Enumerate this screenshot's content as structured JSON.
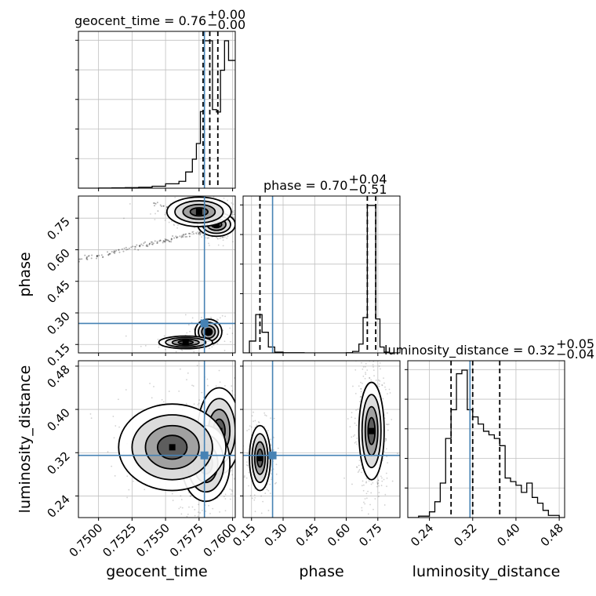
{
  "chart_data": {
    "type": "corner",
    "parameters": [
      "geocent_time",
      "phase",
      "luminosity_distance"
    ],
    "truths": {
      "geocent_time": 0.7579,
      "phase": 0.25,
      "luminosity_distance": 0.315
    },
    "colors": {
      "truth": "#4682b4",
      "hist": "#000000",
      "grid": "#c0c0c0",
      "samples": "#000000"
    },
    "grid": true,
    "titles": [
      {
        "param": "geocent_time",
        "prefix": "geocent_time = 0.76",
        "plus": "+0.00",
        "minus": "−0.00"
      },
      {
        "param": "phase",
        "prefix": "phase = 0.70",
        "plus": "+0.04",
        "minus": "−0.51"
      },
      {
        "param": "luminosity_distance",
        "prefix": "luminosity_distance = 0.32",
        "plus": "+0.05",
        "minus": "−0.04"
      }
    ],
    "axes": {
      "geocent_time": {
        "label": "geocent_time",
        "range": [
          0.7485,
          0.7602
        ],
        "ticks": [
          0.75,
          0.7525,
          0.755,
          0.7575,
          0.76
        ],
        "tick_labels": [
          "0.7500",
          "0.7525",
          "0.7550",
          "0.7575",
          "0.7600"
        ]
      },
      "phase": {
        "label": "phase",
        "range": [
          0.11,
          0.855
        ],
        "ticks": [
          0.15,
          0.3,
          0.45,
          0.6,
          0.75
        ],
        "tick_labels": [
          "0.15",
          "0.30",
          "0.45",
          "0.60",
          "0.75"
        ]
      },
      "luminosity_distance": {
        "label": "luminosity_distance",
        "range": [
          0.2,
          0.49
        ],
        "ticks": [
          0.24,
          0.32,
          0.4,
          0.48
        ],
        "tick_labels": [
          "0.24",
          "0.32",
          "0.40",
          "0.48"
        ]
      }
    },
    "quantiles": {
      "geocent_time": [
        0.7578,
        0.7583,
        0.7589
      ],
      "phase": [
        0.19,
        0.7,
        0.74
      ],
      "luminosity_distance": [
        0.28,
        0.32,
        0.37
      ]
    },
    "histograms": {
      "geocent_time": {
        "edges": [
          0.7485,
          0.75,
          0.751,
          0.752,
          0.753,
          0.754,
          0.755,
          0.756,
          0.7565,
          0.757,
          0.7573,
          0.7576,
          0.7579,
          0.7582,
          0.7585,
          0.7588,
          0.7591,
          0.7594,
          0.7597,
          0.7602
        ],
        "counts": [
          0,
          0.4,
          0.7,
          1.2,
          2,
          4,
          9,
          14,
          33,
          59,
          91,
          156,
          300,
          300,
          160,
          155,
          240,
          300,
          260
        ]
      },
      "phase": {
        "edges": [
          0.11,
          0.14,
          0.17,
          0.2,
          0.23,
          0.26,
          0.3,
          0.4,
          0.5,
          0.6,
          0.63,
          0.66,
          0.68,
          0.7,
          0.72,
          0.74,
          0.76,
          0.78,
          0.8,
          0.855
        ],
        "counts": [
          0,
          80,
          260,
          140,
          40,
          5,
          1,
          0,
          0,
          1,
          10,
          60,
          240,
          1000,
          1000,
          230,
          40,
          5,
          0
        ]
      },
      "luminosity_distance": {
        "edges": [
          0.2,
          0.22,
          0.24,
          0.25,
          0.26,
          0.27,
          0.28,
          0.29,
          0.3,
          0.31,
          0.32,
          0.33,
          0.34,
          0.35,
          0.36,
          0.37,
          0.38,
          0.39,
          0.4,
          0.41,
          0.42,
          0.43,
          0.44,
          0.45,
          0.46,
          0.48,
          0.49
        ],
        "counts": [
          0,
          2,
          8,
          22,
          48,
          110,
          150,
          200,
          205,
          150,
          140,
          130,
          120,
          115,
          110,
          100,
          55,
          50,
          45,
          35,
          48,
          28,
          20,
          10,
          3,
          0
        ]
      }
    },
    "density_2d": {
      "phase_vs_geocent_time": [
        {
          "x": 0.7588,
          "y": 0.72,
          "sx": 0.0007,
          "sy": 0.028,
          "n": 260
        },
        {
          "x": 0.7575,
          "y": 0.78,
          "sx": 0.0012,
          "sy": 0.035,
          "n": 160
        },
        {
          "x": 0.7582,
          "y": 0.21,
          "sx": 0.0005,
          "sy": 0.03,
          "n": 110
        },
        {
          "x": 0.7565,
          "y": 0.16,
          "sx": 0.001,
          "sy": 0.015,
          "n": 60
        }
      ],
      "luminosity_distance_vs_geocent_time": [
        {
          "x": 0.759,
          "y": 0.36,
          "sx": 0.0008,
          "sy": 0.04,
          "n": 340
        },
        {
          "x": 0.758,
          "y": 0.3,
          "sx": 0.0009,
          "sy": 0.035,
          "n": 260
        },
        {
          "x": 0.7555,
          "y": 0.33,
          "sx": 0.002,
          "sy": 0.04,
          "n": 140
        }
      ],
      "luminosity_distance_vs_phase": [
        {
          "x": 0.72,
          "y": 0.36,
          "sx": 0.03,
          "sy": 0.045,
          "n": 420
        },
        {
          "x": 0.19,
          "y": 0.31,
          "sx": 0.025,
          "sy": 0.03,
          "n": 220
        }
      ]
    },
    "tails": [
      {
        "panel": "phase_vs_geocent_time",
        "from": [
          0.7485,
          0.55
        ],
        "to": [
          0.7588,
          0.7
        ],
        "n": 140
      },
      {
        "panel": "phase_vs_geocent_time",
        "from": [
          0.754,
          0.82
        ],
        "to": [
          0.7588,
          0.75
        ],
        "n": 50
      }
    ]
  }
}
